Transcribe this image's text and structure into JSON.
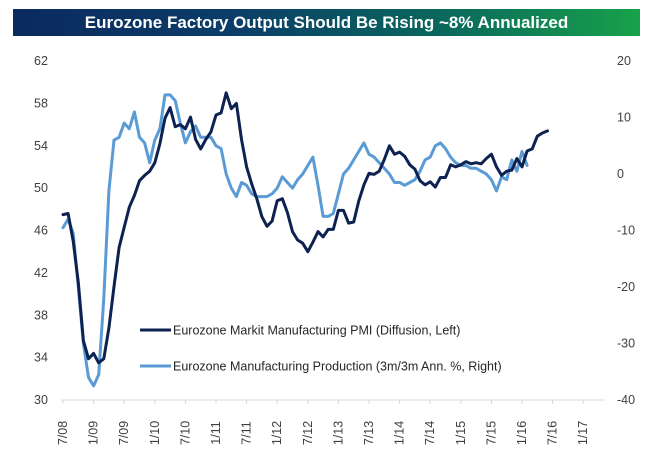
{
  "chart_data": {
    "type": "line",
    "title": "Eurozone Factory Output Should Be Rising ~8% Annualized",
    "xlabel": "",
    "ylabel_left": "",
    "ylabel_right": "",
    "x_ticks": [
      "7/08",
      "1/09",
      "7/09",
      "1/10",
      "7/10",
      "1/11",
      "7/11",
      "1/12",
      "7/12",
      "1/13",
      "7/13",
      "1/14",
      "7/14",
      "1/15",
      "7/15",
      "1/16",
      "7/16",
      "1/17"
    ],
    "x_start": "7/08",
    "x_end": "5/17",
    "y_left": {
      "ticks": [
        "62",
        "58",
        "54",
        "50",
        "46",
        "42",
        "38",
        "34",
        "30"
      ],
      "ylim": [
        30,
        62
      ]
    },
    "y_right": {
      "ticks": [
        "20",
        "10",
        "0",
        "-10",
        "-20",
        "-30",
        "-40"
      ],
      "ylim": [
        -40,
        20
      ]
    },
    "grid": false,
    "legend_position": "bottom-left",
    "series": [
      {
        "name": "Eurozone Markit Manufacturing PMI (Diffusion, Left)",
        "axis": "left",
        "color": "#0d2250",
        "start": "7/08",
        "values": [
          47.5,
          47.6,
          45.0,
          41.1,
          35.6,
          33.9,
          34.4,
          33.5,
          33.9,
          36.8,
          40.7,
          44.4,
          46.3,
          48.2,
          49.3,
          50.7,
          51.2,
          51.6,
          52.4,
          54.2,
          56.6,
          57.6,
          55.8,
          56.0,
          55.6,
          56.7,
          54.6,
          53.7,
          54.6,
          55.3,
          56.9,
          57.1,
          59.0,
          57.5,
          58.0,
          54.6,
          52.0,
          50.4,
          49.0,
          47.3,
          46.4,
          46.9,
          48.8,
          49.0,
          47.7,
          45.9,
          45.1,
          44.8,
          44.0,
          44.9,
          45.9,
          45.4,
          46.1,
          46.1,
          47.9,
          47.9,
          46.7,
          46.8,
          48.8,
          50.3,
          51.4,
          51.3,
          51.6,
          52.7,
          54.0,
          53.2,
          53.4,
          53.0,
          52.2,
          51.8,
          50.7,
          50.3,
          50.6,
          50.1,
          51.0,
          51.0,
          52.2,
          52.0,
          52.2,
          52.5,
          52.3,
          52.4,
          52.3,
          52.8,
          53.2,
          52.0,
          51.2,
          51.6,
          51.7,
          52.8,
          52.0,
          53.5,
          53.7,
          54.9,
          55.2,
          55.4
        ]
      },
      {
        "name": "Eurozone Manufacturing Production (3m/3m Ann. %, Right)",
        "axis": "right",
        "color": "#5b9bd5",
        "start": "7/08",
        "values": [
          -9.5,
          -8.0,
          -10.5,
          -20.0,
          -30.0,
          -36.0,
          -37.5,
          -35.5,
          -22.0,
          -3.0,
          6.0,
          6.5,
          9.0,
          8.0,
          11.0,
          6.5,
          5.5,
          2.0,
          6.0,
          8.0,
          14.0,
          14.0,
          13.0,
          9.0,
          5.5,
          7.5,
          8.5,
          6.5,
          6.5,
          6.5,
          5.0,
          4.5,
          0.0,
          -2.5,
          -4.0,
          -1.5,
          -2.0,
          -3.5,
          -4.0,
          -4.0,
          -4.0,
          -3.5,
          -2.5,
          -0.5,
          -1.5,
          -2.5,
          -1.0,
          0.0,
          1.5,
          3.0,
          -2.0,
          -7.5,
          -7.5,
          -7.0,
          -3.5,
          0.0,
          1.0,
          2.5,
          4.0,
          5.5,
          3.5,
          3.0,
          2.0,
          1.0,
          0.0,
          -1.5,
          -1.5,
          -2.0,
          -1.5,
          -1.0,
          0.5,
          2.5,
          3.0,
          5.0,
          5.5,
          4.5,
          3.0,
          2.0,
          1.5,
          1.5,
          1.0,
          1.0,
          0.5,
          0.0,
          -1.0,
          -3.0,
          -0.5,
          -1.0,
          2.5,
          0.5,
          4.0,
          1.5
        ]
      }
    ]
  }
}
